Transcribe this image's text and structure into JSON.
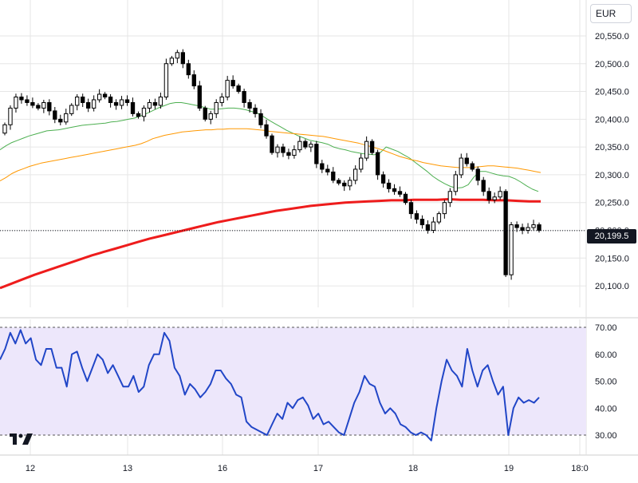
{
  "currency": "EUR",
  "last_price_label": "20,199.5",
  "colors": {
    "candle_up_body": "#ffffff",
    "candle_down_body": "#000000",
    "candle_outline": "#000000",
    "ma_fast": "#4caf50",
    "ma_mid": "#ff9800",
    "ma_slow": "#ee1c1c",
    "rsi_line": "#2146c7",
    "rsi_band": "#ede7fb",
    "grid": "#e6e6e6"
  },
  "chart_data": [
    {
      "type": "candlestick",
      "title": "",
      "price_axis": {
        "ticks": [
          "20,550.0",
          "20,500.0",
          "20,450.0",
          "20,400.0",
          "20,350.0",
          "20,300.0",
          "20,250.0",
          "20,200.0",
          "20,150.0",
          "20,100.0"
        ],
        "ylim": [
          20080,
          20560
        ]
      },
      "x_axis": {
        "ticks": [
          "12",
          "13",
          "16",
          "17",
          "18",
          "19",
          "18:0"
        ]
      },
      "last_price": 20199.5,
      "closes": [
        20390,
        20420,
        20440,
        20435,
        20430,
        20425,
        20420,
        20430,
        20415,
        20400,
        20395,
        20410,
        20425,
        20440,
        20430,
        20420,
        20435,
        20445,
        20440,
        20430,
        20425,
        20435,
        20430,
        20410,
        20405,
        20420,
        20430,
        20425,
        20440,
        20500,
        20510,
        20520,
        20500,
        20480,
        20460,
        20420,
        20400,
        20410,
        20430,
        20440,
        20470,
        20460,
        20450,
        20430,
        20420,
        20410,
        20390,
        20370,
        20340,
        20350,
        20340,
        20335,
        20345,
        20360,
        20350,
        20355,
        20320,
        20310,
        20305,
        20290,
        20285,
        20280,
        20290,
        20310,
        20330,
        20360,
        20340,
        20300,
        20285,
        20275,
        20270,
        20265,
        20250,
        20230,
        20220,
        20210,
        20200,
        20215,
        20230,
        20250,
        20270,
        20300,
        20330,
        20320,
        20310,
        20290,
        20270,
        20255,
        20260,
        20270,
        20120,
        20210,
        20205,
        20200,
        20205,
        20210,
        20200
      ],
      "series": [
        {
          "name": "",
          "values": [
            20345,
            20352,
            20358,
            20362,
            20366,
            20370,
            20373,
            20376,
            20379,
            20380,
            20381,
            20383,
            20385,
            20387,
            20389,
            20390,
            20391,
            20392,
            20393,
            20395,
            20396,
            20398,
            20400,
            20402,
            20406,
            20410,
            20415,
            20420,
            20424,
            20428,
            20430,
            20430,
            20428,
            20426,
            20424,
            20421,
            20418,
            20418,
            20419,
            20420,
            20420,
            20419,
            20417,
            20414,
            20411,
            20405,
            20398,
            20392,
            20386,
            20380,
            20375,
            20370,
            20366,
            20362,
            20360,
            20358,
            20355,
            20350,
            20347,
            20345,
            20342,
            20340,
            20338,
            20337,
            20336,
            20340,
            20350,
            20346,
            20342,
            20336,
            20330,
            20322,
            20314,
            20306,
            20297,
            20290,
            20284,
            20279,
            20276,
            20277,
            20282,
            20296,
            20306,
            20306,
            20303,
            20300,
            20298,
            20297,
            20293,
            20287,
            20280,
            20274,
            20270
          ]
        },
        {
          "name": "",
          "values": [
            20289,
            20295,
            20302,
            20307,
            20311,
            20315,
            20318,
            20321,
            20323,
            20325,
            20327,
            20329,
            20331,
            20333,
            20335,
            20337,
            20339,
            20341,
            20343,
            20345,
            20347,
            20349,
            20351,
            20353,
            20356,
            20360,
            20365,
            20368,
            20371,
            20373,
            20375,
            20377,
            20378,
            20379,
            20380,
            20381,
            20381,
            20382,
            20382,
            20383,
            20383,
            20383,
            20383,
            20382,
            20381,
            20380,
            20378,
            20377,
            20376,
            20375,
            20374,
            20373,
            20372,
            20371,
            20370,
            20369,
            20367,
            20365,
            20363,
            20361,
            20359,
            20357,
            20354,
            20351,
            20348,
            20345,
            20341,
            20337,
            20333,
            20330,
            20327,
            20325,
            20322,
            20320,
            20318,
            20316,
            20315,
            20314,
            20313,
            20313,
            20313,
            20314,
            20315,
            20316,
            20316,
            20315,
            20314,
            20313,
            20312,
            20310,
            20308,
            20306,
            20304
          ]
        },
        {
          "name": "",
          "values": [
            20096,
            20104,
            20112,
            20120,
            20127,
            20134,
            20141,
            20148,
            20155,
            20161,
            20167,
            20173,
            20179,
            20185,
            20190,
            20195,
            20200,
            20205,
            20210,
            20215,
            20219,
            20223,
            20227,
            20231,
            20235,
            20238,
            20241,
            20244,
            20246,
            20248,
            20250,
            20251,
            20252,
            20253,
            20254,
            20254,
            20255,
            20255,
            20255,
            20256,
            20255,
            20255,
            20255,
            20254,
            20254,
            20253,
            20252,
            20252
          ]
        }
      ]
    },
    {
      "type": "line",
      "title": "",
      "y_axis": {
        "ticks": [
          "70.00",
          "60.00",
          "50.00",
          "40.00",
          "30.00"
        ],
        "ylim": [
          25,
          72
        ],
        "band": [
          30,
          70
        ]
      },
      "series": [
        {
          "name": "",
          "values": [
            58,
            62,
            68,
            64,
            69,
            64,
            66,
            58,
            56,
            62,
            62,
            55,
            55,
            48,
            60,
            61,
            55,
            50,
            55,
            60,
            58,
            53,
            56,
            52,
            48,
            48,
            52,
            46,
            48,
            56,
            60,
            60,
            68,
            65,
            55,
            52,
            45,
            49,
            47,
            44,
            46,
            49,
            54,
            54,
            51,
            49,
            45,
            44,
            35,
            33,
            32,
            31,
            30,
            34,
            38,
            36,
            42,
            40,
            43,
            44,
            41,
            36,
            38,
            34,
            35,
            33,
            31,
            30,
            36,
            42,
            46,
            52,
            49,
            48,
            42,
            38,
            40,
            38,
            34,
            33,
            31,
            30,
            31,
            30,
            28,
            40,
            50,
            58,
            54,
            52,
            48,
            62,
            54,
            48,
            54,
            56,
            50,
            45,
            48,
            30,
            40,
            44,
            42,
            43,
            42,
            44
          ]
        }
      ]
    }
  ]
}
